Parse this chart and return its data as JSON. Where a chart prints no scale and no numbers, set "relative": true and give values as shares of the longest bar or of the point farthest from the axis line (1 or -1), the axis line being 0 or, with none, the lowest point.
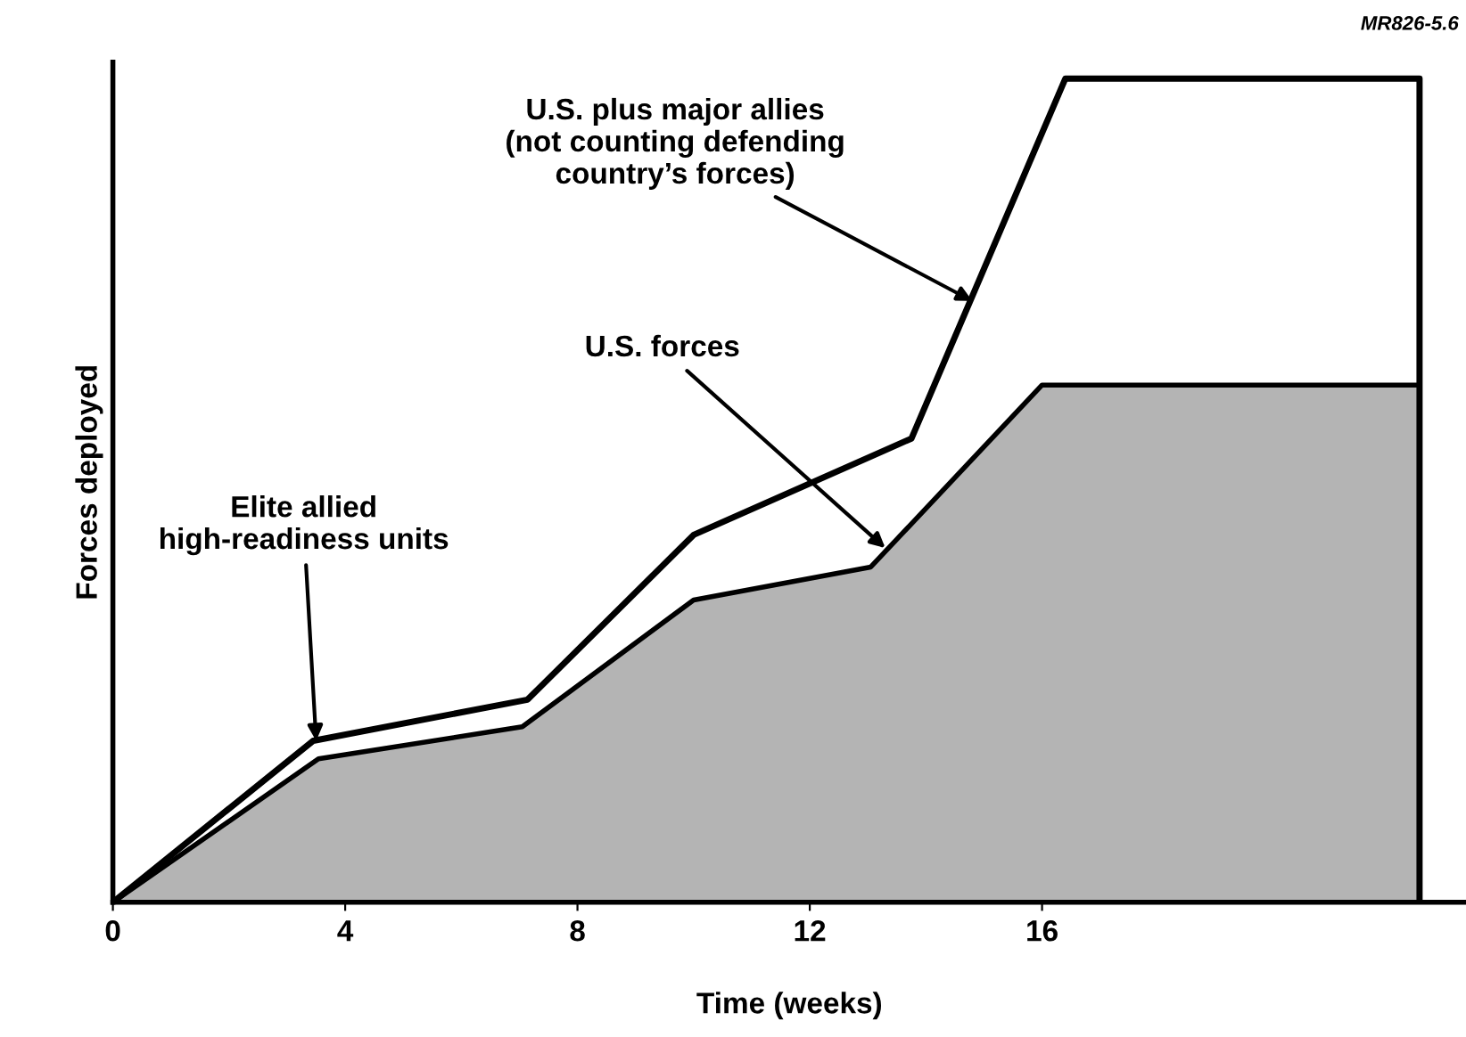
{
  "chart_data": {
    "type": "line",
    "relative": true,
    "xlabel": "Time (weeks)",
    "ylabel": "Forces deployed",
    "xlim": [
      0,
      23.3
    ],
    "xticks": [
      0,
      4,
      8,
      12,
      16
    ],
    "grid": false,
    "legend": false,
    "marker": "none",
    "line_style": "solid",
    "series": [
      {
        "type": "area",
        "color": "#b4b4b4",
        "x": [
          0,
          3.54,
          7.05,
          10,
          13.05,
          16,
          22.5,
          22.5
        ],
        "values": [
          0,
          0.174,
          0.213,
          0.367,
          0.407,
          0.628,
          0.628,
          0
        ]
      },
      {
        "color": "#000000",
        "x": [
          0,
          3.45,
          7.14,
          10,
          13.75,
          16.4,
          22.5,
          22.5
        ],
        "values": [
          0,
          0.196,
          0.246,
          0.446,
          0.563,
          1,
          1,
          0
        ]
      }
    ],
    "annotations": [
      {
        "text": "Elite allied\nhigh-readiness units",
        "x": 3.5,
        "y": 0.196
      },
      {
        "text": "U.S. forces",
        "x": 13.3,
        "y": 0.43
      },
      {
        "text": "U.S. plus major allies\n(not counting defending\ncountry’s forces)",
        "x": 14.8,
        "y": 0.73
      },
      "MR826-5.6"
    ]
  }
}
